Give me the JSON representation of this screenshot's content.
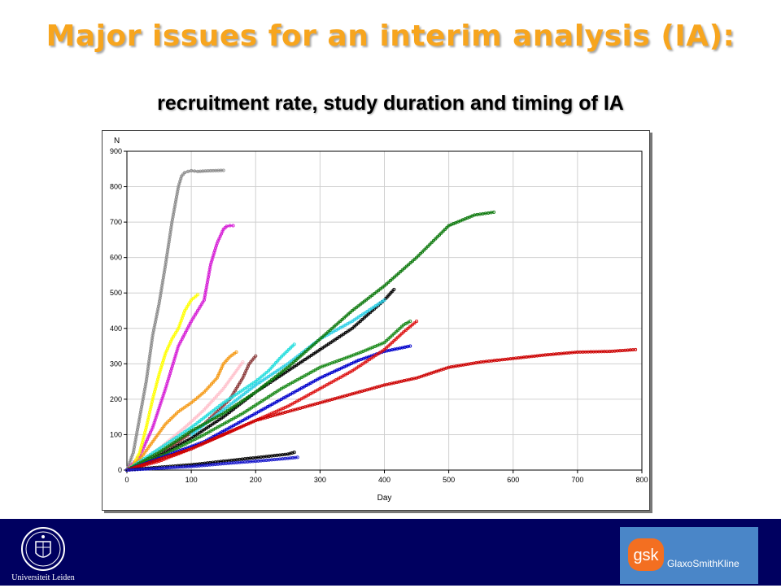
{
  "slide": {
    "title": "Major issues for an interim analysis (IA):",
    "subtitle": "recruitment rate, study duration and timing of IA"
  },
  "footer": {
    "left_logo_text": "Universiteit Leiden",
    "right_logo_mark": "gsk",
    "right_logo_text": "GlaxoSmithKline",
    "background": "#000060",
    "gsk_color": "#f36f21"
  },
  "chart_data": {
    "type": "line",
    "xlabel": "Day",
    "ylabel": "N",
    "xlim": [
      0,
      800
    ],
    "ylim": [
      0,
      900
    ],
    "xticks": [
      0,
      100,
      200,
      300,
      400,
      500,
      600,
      700,
      800
    ],
    "yticks": [
      0,
      100,
      200,
      300,
      400,
      500,
      600,
      700,
      800,
      900
    ],
    "grid": true,
    "markers": "open circles",
    "series": [
      {
        "color": "#8c8c8c",
        "x": [
          0,
          10,
          20,
          30,
          40,
          50,
          60,
          70,
          80,
          85,
          90,
          95,
          100,
          110,
          130,
          150
        ],
        "y": [
          0,
          50,
          150,
          250,
          380,
          470,
          580,
          700,
          800,
          830,
          840,
          843,
          845,
          843,
          845,
          846
        ]
      },
      {
        "color": "#d61fd6",
        "x": [
          0,
          20,
          40,
          60,
          80,
          100,
          120,
          130,
          140,
          150,
          155,
          160,
          165
        ],
        "y": [
          0,
          40,
          120,
          230,
          350,
          420,
          480,
          580,
          640,
          680,
          688,
          690,
          690
        ]
      },
      {
        "color": "#ffff00",
        "x": [
          0,
          10,
          20,
          30,
          40,
          50,
          60,
          70,
          80,
          90,
          100,
          110
        ],
        "y": [
          0,
          15,
          50,
          120,
          200,
          270,
          330,
          370,
          400,
          450,
          480,
          495
        ]
      },
      {
        "color": "#f59a16",
        "x": [
          0,
          20,
          40,
          60,
          80,
          100,
          120,
          140,
          150,
          160,
          170
        ],
        "y": [
          0,
          30,
          80,
          130,
          165,
          190,
          220,
          260,
          300,
          320,
          333
        ]
      },
      {
        "color": "#ffc0cb",
        "x": [
          0,
          30,
          60,
          90,
          120,
          150,
          170,
          180
        ],
        "y": [
          0,
          30,
          75,
          120,
          170,
          230,
          280,
          305
        ]
      },
      {
        "color": "#8b3a3a",
        "x": [
          0,
          40,
          80,
          120,
          160,
          180,
          190,
          200
        ],
        "y": [
          0,
          35,
          80,
          130,
          200,
          260,
          300,
          322
        ]
      },
      {
        "color": "#22dddd",
        "x": [
          0,
          50,
          100,
          150,
          200,
          220,
          240,
          260
        ],
        "y": [
          0,
          60,
          120,
          190,
          250,
          280,
          320,
          355
        ]
      },
      {
        "color": "#000000",
        "x": [
          0,
          50,
          100,
          150,
          200,
          250,
          300,
          350,
          400,
          415
        ],
        "y": [
          0,
          40,
          90,
          150,
          220,
          280,
          340,
          400,
          480,
          510
        ]
      },
      {
        "color": "#2ccfe6",
        "x": [
          100,
          150,
          200,
          250,
          300,
          350,
          400
        ],
        "y": [
          100,
          170,
          240,
          300,
          370,
          420,
          480
        ]
      },
      {
        "color": "#0f7a0f",
        "x": [
          0,
          50,
          100,
          150,
          200,
          250,
          300,
          350,
          400,
          450,
          500,
          540,
          570
        ],
        "y": [
          0,
          50,
          110,
          160,
          220,
          290,
          370,
          450,
          520,
          600,
          690,
          720,
          728
        ]
      },
      {
        "color": "#1a8a1a",
        "x": [
          0,
          60,
          120,
          180,
          240,
          300,
          360,
          400,
          430,
          440
        ],
        "y": [
          0,
          45,
          100,
          160,
          230,
          290,
          330,
          360,
          410,
          420
        ]
      },
      {
        "color": "#0000cc",
        "x": [
          0,
          60,
          120,
          180,
          240,
          300,
          360,
          400,
          440
        ],
        "y": [
          0,
          40,
          80,
          140,
          200,
          260,
          310,
          335,
          350
        ]
      },
      {
        "color": "#dd1111",
        "x": [
          0,
          50,
          100,
          150,
          200,
          250,
          300,
          350,
          400,
          430,
          450
        ],
        "y": [
          0,
          25,
          60,
          100,
          140,
          180,
          230,
          280,
          340,
          390,
          420
        ]
      },
      {
        "color": "#cc0000",
        "x": [
          0,
          100,
          200,
          300,
          400,
          450,
          500,
          550,
          600,
          650,
          700,
          750,
          790
        ],
        "y": [
          0,
          60,
          140,
          190,
          240,
          260,
          290,
          305,
          315,
          325,
          333,
          335,
          340
        ]
      },
      {
        "color": "#000000",
        "x": [
          0,
          50,
          100,
          150,
          200,
          250,
          260
        ],
        "y": [
          0,
          8,
          15,
          25,
          35,
          45,
          50
        ]
      },
      {
        "color": "#1a1acc",
        "x": [
          0,
          50,
          100,
          150,
          200,
          250,
          265
        ],
        "y": [
          0,
          5,
          10,
          18,
          25,
          33,
          36
        ]
      }
    ]
  }
}
